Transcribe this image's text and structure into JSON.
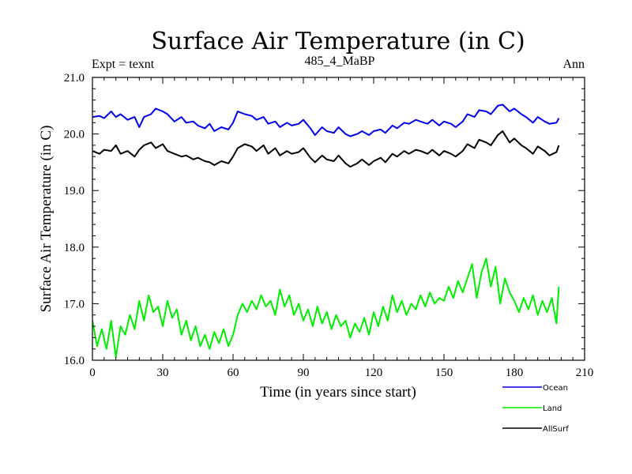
{
  "chart_data": {
    "type": "line",
    "title": "Surface Air Temperature (in C)",
    "subtitle": "485_4_MaBP",
    "left_note": "Expt = texnt",
    "right_note": "Ann",
    "xlabel": "Time (in years since start)",
    "ylabel": "Surface Air Temperature (in C)",
    "xlim": [
      0,
      210
    ],
    "ylim": [
      16.0,
      21.0
    ],
    "xticks": [
      0,
      30,
      60,
      90,
      120,
      150,
      180,
      210
    ],
    "xtick_labels": [
      "0",
      "30",
      "60",
      "90",
      "120",
      "150",
      "180",
      "210"
    ],
    "yticks": [
      16.0,
      17.0,
      18.0,
      19.0,
      20.0,
      21.0
    ],
    "ytick_labels": [
      "16.0",
      "17.0",
      "18.0",
      "19.0",
      "20.0",
      "21.0"
    ],
    "legend_position": "below-right",
    "series": [
      {
        "name": "Ocean",
        "color": "#0000ee",
        "x": [
          0,
          3,
          5,
          8,
          10,
          12,
          15,
          18,
          20,
          22,
          25,
          27,
          30,
          32,
          35,
          38,
          40,
          43,
          45,
          48,
          50,
          52,
          55,
          58,
          60,
          62,
          65,
          68,
          70,
          73,
          75,
          78,
          80,
          83,
          85,
          88,
          90,
          93,
          95,
          98,
          100,
          103,
          105,
          108,
          110,
          113,
          115,
          118,
          120,
          123,
          125,
          128,
          130,
          133,
          135,
          138,
          140,
          143,
          145,
          148,
          150,
          153,
          155,
          158,
          160,
          163,
          165,
          168,
          170,
          173,
          175,
          178,
          180,
          183,
          185,
          188,
          190,
          193,
          195,
          198,
          199
        ],
        "values": [
          20.3,
          20.32,
          20.28,
          20.4,
          20.3,
          20.35,
          20.25,
          20.3,
          20.12,
          20.3,
          20.35,
          20.45,
          20.4,
          20.35,
          20.22,
          20.3,
          20.2,
          20.22,
          20.15,
          20.1,
          20.18,
          20.05,
          20.12,
          20.08,
          20.2,
          20.4,
          20.35,
          20.32,
          20.25,
          20.3,
          20.18,
          20.22,
          20.12,
          20.2,
          20.15,
          20.18,
          20.25,
          20.1,
          19.98,
          20.12,
          20.05,
          20.02,
          20.12,
          20.0,
          19.96,
          20.0,
          20.05,
          19.98,
          20.05,
          20.08,
          20.02,
          20.15,
          20.1,
          20.2,
          20.18,
          20.25,
          20.22,
          20.18,
          20.25,
          20.15,
          20.22,
          20.18,
          20.12,
          20.22,
          20.35,
          20.3,
          20.42,
          20.4,
          20.35,
          20.5,
          20.52,
          20.4,
          20.45,
          20.35,
          20.3,
          20.2,
          20.3,
          20.22,
          20.18,
          20.2,
          20.28
        ]
      },
      {
        "name": "Land",
        "color": "#00ee00",
        "x": [
          0,
          2,
          4,
          6,
          8,
          10,
          12,
          14,
          16,
          18,
          20,
          22,
          24,
          26,
          28,
          30,
          32,
          34,
          36,
          38,
          40,
          42,
          44,
          46,
          48,
          50,
          52,
          54,
          56,
          58,
          60,
          62,
          64,
          66,
          68,
          70,
          72,
          74,
          76,
          78,
          80,
          82,
          84,
          86,
          88,
          90,
          92,
          94,
          96,
          98,
          100,
          102,
          104,
          106,
          108,
          110,
          112,
          114,
          116,
          118,
          120,
          122,
          124,
          126,
          128,
          130,
          132,
          134,
          136,
          138,
          140,
          142,
          144,
          146,
          148,
          150,
          152,
          154,
          156,
          158,
          160,
          162,
          164,
          166,
          168,
          170,
          172,
          174,
          176,
          178,
          180,
          182,
          184,
          186,
          188,
          190,
          192,
          194,
          196,
          198,
          199
        ],
        "values": [
          16.7,
          16.25,
          16.55,
          16.2,
          16.7,
          16.05,
          16.6,
          16.45,
          16.8,
          16.55,
          17.05,
          16.7,
          17.15,
          16.85,
          16.95,
          16.6,
          17.05,
          16.75,
          16.9,
          16.45,
          16.7,
          16.35,
          16.6,
          16.25,
          16.45,
          16.2,
          16.5,
          16.3,
          16.55,
          16.25,
          16.45,
          16.8,
          17.0,
          16.85,
          17.05,
          16.9,
          17.15,
          16.95,
          17.05,
          16.8,
          17.25,
          16.95,
          17.15,
          16.8,
          17.0,
          16.7,
          16.9,
          16.6,
          16.95,
          16.65,
          16.85,
          16.55,
          16.8,
          16.6,
          16.7,
          16.4,
          16.65,
          16.5,
          16.75,
          16.45,
          16.85,
          16.6,
          16.95,
          16.7,
          17.15,
          16.85,
          17.05,
          16.8,
          17.0,
          16.9,
          17.15,
          16.95,
          17.2,
          17.0,
          17.1,
          17.05,
          17.3,
          17.1,
          17.4,
          17.2,
          17.45,
          17.7,
          17.1,
          17.55,
          17.8,
          17.3,
          17.65,
          17.0,
          17.45,
          17.2,
          17.05,
          16.85,
          17.1,
          16.9,
          17.15,
          16.8,
          17.05,
          16.85,
          17.1,
          16.65,
          17.3
        ]
      },
      {
        "name": "AllSurf",
        "color": "#000000",
        "x": [
          0,
          3,
          5,
          8,
          10,
          12,
          15,
          18,
          20,
          22,
          25,
          27,
          30,
          32,
          35,
          38,
          40,
          43,
          45,
          48,
          50,
          52,
          55,
          58,
          60,
          62,
          65,
          68,
          70,
          73,
          75,
          78,
          80,
          83,
          85,
          88,
          90,
          93,
          95,
          98,
          100,
          103,
          105,
          108,
          110,
          113,
          115,
          118,
          120,
          123,
          125,
          128,
          130,
          133,
          135,
          138,
          140,
          143,
          145,
          148,
          150,
          153,
          155,
          158,
          160,
          163,
          165,
          168,
          170,
          173,
          175,
          178,
          180,
          183,
          185,
          188,
          190,
          193,
          195,
          198,
          199
        ],
        "values": [
          19.7,
          19.65,
          19.72,
          19.7,
          19.8,
          19.65,
          19.7,
          19.6,
          19.72,
          19.8,
          19.85,
          19.75,
          19.82,
          19.7,
          19.65,
          19.6,
          19.62,
          19.55,
          19.58,
          19.52,
          19.5,
          19.45,
          19.52,
          19.48,
          19.6,
          19.75,
          19.82,
          19.78,
          19.7,
          19.8,
          19.65,
          19.75,
          19.62,
          19.7,
          19.65,
          19.68,
          19.75,
          19.58,
          19.5,
          19.62,
          19.55,
          19.52,
          19.62,
          19.48,
          19.42,
          19.48,
          19.55,
          19.45,
          19.52,
          19.58,
          19.5,
          19.65,
          19.6,
          19.7,
          19.65,
          19.72,
          19.7,
          19.65,
          19.72,
          19.62,
          19.7,
          19.65,
          19.6,
          19.7,
          19.82,
          19.75,
          19.9,
          19.85,
          19.8,
          19.98,
          20.05,
          19.85,
          19.92,
          19.8,
          19.75,
          19.65,
          19.78,
          19.7,
          19.62,
          19.68,
          19.8
        ]
      }
    ]
  }
}
